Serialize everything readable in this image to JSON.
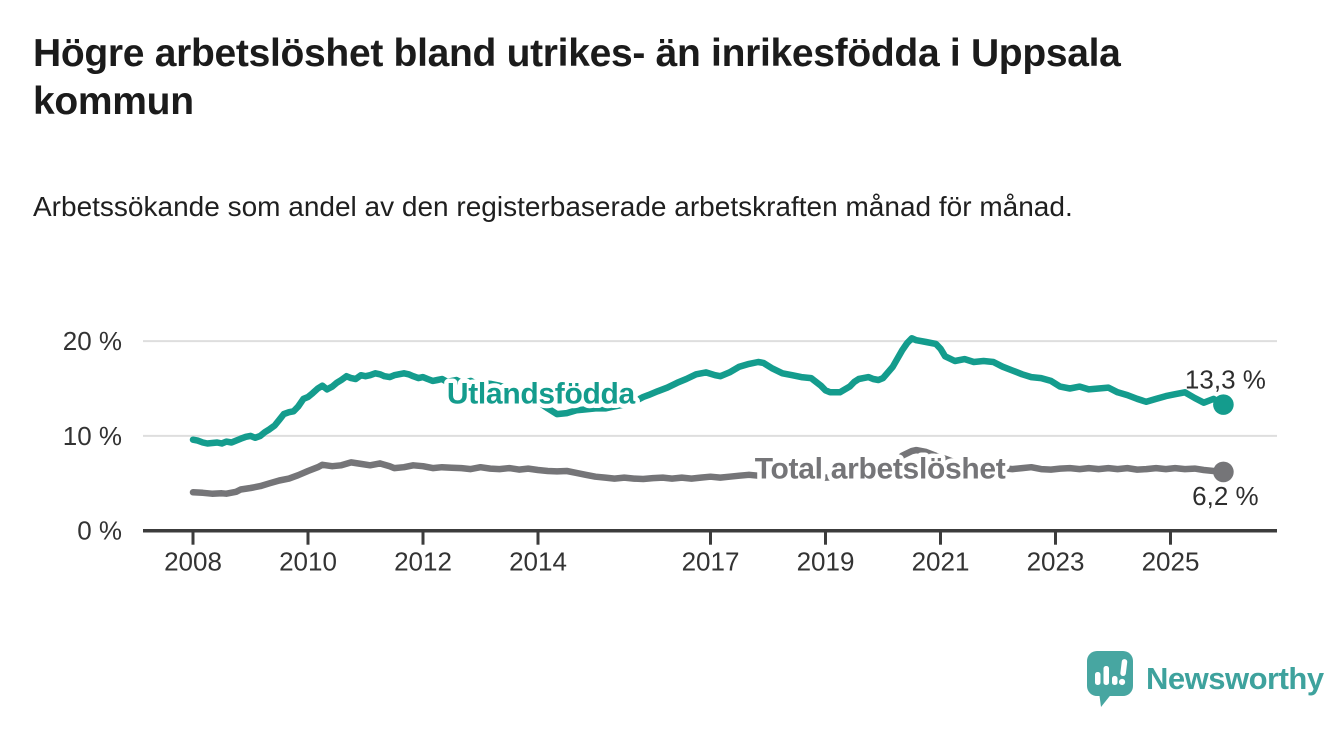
{
  "header": {
    "title": "Högre arbetslöshet bland utrikes- än inrikesfödda i Uppsala kommun",
    "subtitle": "Arbetssökande som andel av den registerbaserade arbetskraften månad för månad."
  },
  "chart_data": {
    "type": "line",
    "title": "Högre arbetslöshet bland utrikes- än inrikesfödda i Uppsala kommun",
    "xlabel": "",
    "ylabel": "%",
    "grid": "horizontal-only",
    "legend_position": "inline-labels-on-lines",
    "xlim": [
      2007.13,
      2026.85
    ],
    "ylim": [
      0,
      21.5
    ],
    "x_ticks": [
      {
        "value": 2008,
        "label": "2008"
      },
      {
        "value": 2010,
        "label": "2010"
      },
      {
        "value": 2012,
        "label": "2012"
      },
      {
        "value": 2014,
        "label": "2014"
      },
      {
        "value": 2017,
        "label": "2017"
      },
      {
        "value": 2019,
        "label": "2019"
      },
      {
        "value": 2021,
        "label": "2021"
      },
      {
        "value": 2023,
        "label": "2023"
      },
      {
        "value": 2025,
        "label": "2025"
      }
    ],
    "y_ticks": [
      {
        "value": 0,
        "label": "0 %"
      },
      {
        "value": 10,
        "label": "10 %"
      },
      {
        "value": 20,
        "label": "20 %"
      }
    ],
    "colors": {
      "grid": "#dedede",
      "axis": "#3c3c3c",
      "tick_text": "#333333",
      "end_label_text": "#2e2e2e"
    },
    "series": [
      {
        "name": "Utlandsfödda",
        "color": "#149C8D",
        "end_value": 13.3,
        "end_label": "13,3 %",
        "end_label_side": "above",
        "label_at": {
          "year": 2014.05,
          "pct": 14.45
        },
        "points": [
          [
            2008.0,
            9.6
          ],
          [
            2008.08,
            9.5
          ],
          [
            2008.17,
            9.3
          ],
          [
            2008.25,
            9.2
          ],
          [
            2008.42,
            9.3
          ],
          [
            2008.5,
            9.2
          ],
          [
            2008.58,
            9.4
          ],
          [
            2008.67,
            9.3
          ],
          [
            2008.75,
            9.5
          ],
          [
            2008.83,
            9.7
          ],
          [
            2008.92,
            9.9
          ],
          [
            2009.0,
            10.0
          ],
          [
            2009.08,
            9.8
          ],
          [
            2009.17,
            10.0
          ],
          [
            2009.25,
            10.4
          ],
          [
            2009.33,
            10.7
          ],
          [
            2009.42,
            11.1
          ],
          [
            2009.5,
            11.7
          ],
          [
            2009.58,
            12.3
          ],
          [
            2009.67,
            12.5
          ],
          [
            2009.75,
            12.6
          ],
          [
            2009.83,
            13.1
          ],
          [
            2009.92,
            13.9
          ],
          [
            2010.0,
            14.1
          ],
          [
            2010.08,
            14.5
          ],
          [
            2010.17,
            15.0
          ],
          [
            2010.25,
            15.3
          ],
          [
            2010.33,
            14.9
          ],
          [
            2010.42,
            15.2
          ],
          [
            2010.5,
            15.6
          ],
          [
            2010.58,
            15.9
          ],
          [
            2010.67,
            16.3
          ],
          [
            2010.75,
            16.1
          ],
          [
            2010.83,
            16.0
          ],
          [
            2010.92,
            16.4
          ],
          [
            2011.0,
            16.3
          ],
          [
            2011.08,
            16.4
          ],
          [
            2011.17,
            16.6
          ],
          [
            2011.25,
            16.5
          ],
          [
            2011.33,
            16.3
          ],
          [
            2011.42,
            16.2
          ],
          [
            2011.5,
            16.4
          ],
          [
            2011.58,
            16.5
          ],
          [
            2011.67,
            16.6
          ],
          [
            2011.75,
            16.5
          ],
          [
            2011.83,
            16.3
          ],
          [
            2011.92,
            16.1
          ],
          [
            2012.0,
            16.2
          ],
          [
            2012.08,
            16.0
          ],
          [
            2012.17,
            15.8
          ],
          [
            2012.25,
            15.9
          ],
          [
            2012.33,
            16.0
          ],
          [
            2012.42,
            15.7
          ],
          [
            2012.5,
            15.8
          ],
          [
            2012.58,
            15.9
          ],
          [
            2012.67,
            15.6
          ],
          [
            2012.75,
            15.7
          ],
          [
            2012.83,
            15.8
          ],
          [
            2012.92,
            15.5
          ],
          [
            2013.0,
            15.6
          ],
          [
            2013.17,
            15.5
          ],
          [
            2013.33,
            15.3
          ],
          [
            2013.5,
            15.0
          ],
          [
            2013.67,
            14.6
          ],
          [
            2013.83,
            14.1
          ],
          [
            2014.0,
            13.6
          ],
          [
            2014.17,
            12.9
          ],
          [
            2014.33,
            12.3
          ],
          [
            2014.5,
            12.4
          ],
          [
            2014.67,
            12.7
          ],
          [
            2014.83,
            12.8
          ],
          [
            2015.0,
            12.9
          ],
          [
            2015.17,
            12.9
          ],
          [
            2015.33,
            13.1
          ],
          [
            2015.5,
            13.3
          ],
          [
            2015.67,
            13.6
          ],
          [
            2015.83,
            14.1
          ],
          [
            2015.92,
            14.3
          ],
          [
            2016.08,
            14.7
          ],
          [
            2016.25,
            15.1
          ],
          [
            2016.42,
            15.6
          ],
          [
            2016.58,
            16.0
          ],
          [
            2016.75,
            16.5
          ],
          [
            2016.92,
            16.7
          ],
          [
            2017.08,
            16.4
          ],
          [
            2017.17,
            16.3
          ],
          [
            2017.33,
            16.7
          ],
          [
            2017.5,
            17.3
          ],
          [
            2017.67,
            17.6
          ],
          [
            2017.83,
            17.8
          ],
          [
            2017.92,
            17.7
          ],
          [
            2018.08,
            17.1
          ],
          [
            2018.25,
            16.6
          ],
          [
            2018.42,
            16.4
          ],
          [
            2018.58,
            16.2
          ],
          [
            2018.75,
            16.1
          ],
          [
            2018.92,
            15.3
          ],
          [
            2019.0,
            14.8
          ],
          [
            2019.08,
            14.6
          ],
          [
            2019.25,
            14.6
          ],
          [
            2019.42,
            15.2
          ],
          [
            2019.5,
            15.7
          ],
          [
            2019.58,
            16.0
          ],
          [
            2019.75,
            16.2
          ],
          [
            2019.83,
            16.0
          ],
          [
            2019.92,
            15.9
          ],
          [
            2020.0,
            16.1
          ],
          [
            2020.17,
            17.3
          ],
          [
            2020.33,
            19.0
          ],
          [
            2020.42,
            19.8
          ],
          [
            2020.5,
            20.3
          ],
          [
            2020.58,
            20.1
          ],
          [
            2020.75,
            19.9
          ],
          [
            2020.92,
            19.7
          ],
          [
            2021.0,
            19.2
          ],
          [
            2021.08,
            18.4
          ],
          [
            2021.25,
            17.9
          ],
          [
            2021.42,
            18.1
          ],
          [
            2021.58,
            17.8
          ],
          [
            2021.75,
            17.9
          ],
          [
            2021.92,
            17.8
          ],
          [
            2022.08,
            17.3
          ],
          [
            2022.25,
            16.9
          ],
          [
            2022.42,
            16.5
          ],
          [
            2022.58,
            16.2
          ],
          [
            2022.75,
            16.1
          ],
          [
            2022.92,
            15.8
          ],
          [
            2023.08,
            15.2
          ],
          [
            2023.25,
            15.0
          ],
          [
            2023.42,
            15.2
          ],
          [
            2023.58,
            14.9
          ],
          [
            2023.75,
            15.0
          ],
          [
            2023.92,
            15.1
          ],
          [
            2024.08,
            14.6
          ],
          [
            2024.25,
            14.3
          ],
          [
            2024.42,
            13.9
          ],
          [
            2024.58,
            13.6
          ],
          [
            2024.75,
            13.9
          ],
          [
            2024.92,
            14.2
          ],
          [
            2025.08,
            14.4
          ],
          [
            2025.25,
            14.6
          ],
          [
            2025.42,
            14.0
          ],
          [
            2025.58,
            13.5
          ],
          [
            2025.75,
            13.9
          ],
          [
            2025.92,
            13.3
          ]
        ]
      },
      {
        "name": "Total arbetslöshet",
        "color": "#757578",
        "end_value": 6.2,
        "end_label": "6,2 %",
        "end_label_side": "below",
        "label_at": {
          "year": 2019.95,
          "pct": 6.55
        },
        "points": [
          [
            2008.0,
            4.05
          ],
          [
            2008.17,
            4.0
          ],
          [
            2008.33,
            3.9
          ],
          [
            2008.5,
            3.95
          ],
          [
            2008.58,
            3.9
          ],
          [
            2008.75,
            4.1
          ],
          [
            2008.83,
            4.35
          ],
          [
            2009.0,
            4.5
          ],
          [
            2009.17,
            4.7
          ],
          [
            2009.33,
            5.0
          ],
          [
            2009.5,
            5.3
          ],
          [
            2009.67,
            5.5
          ],
          [
            2009.83,
            5.85
          ],
          [
            2010.0,
            6.3
          ],
          [
            2010.17,
            6.7
          ],
          [
            2010.25,
            6.95
          ],
          [
            2010.42,
            6.8
          ],
          [
            2010.58,
            6.9
          ],
          [
            2010.75,
            7.2
          ],
          [
            2010.92,
            7.05
          ],
          [
            2011.08,
            6.9
          ],
          [
            2011.25,
            7.1
          ],
          [
            2011.42,
            6.8
          ],
          [
            2011.5,
            6.6
          ],
          [
            2011.67,
            6.7
          ],
          [
            2011.83,
            6.9
          ],
          [
            2012.0,
            6.8
          ],
          [
            2012.17,
            6.6
          ],
          [
            2012.33,
            6.7
          ],
          [
            2012.5,
            6.65
          ],
          [
            2012.67,
            6.6
          ],
          [
            2012.83,
            6.5
          ],
          [
            2013.0,
            6.7
          ],
          [
            2013.17,
            6.55
          ],
          [
            2013.33,
            6.5
          ],
          [
            2013.5,
            6.6
          ],
          [
            2013.67,
            6.45
          ],
          [
            2013.83,
            6.55
          ],
          [
            2014.0,
            6.4
          ],
          [
            2014.17,
            6.3
          ],
          [
            2014.33,
            6.25
          ],
          [
            2014.5,
            6.3
          ],
          [
            2014.67,
            6.1
          ],
          [
            2014.83,
            5.9
          ],
          [
            2015.0,
            5.7
          ],
          [
            2015.17,
            5.6
          ],
          [
            2015.33,
            5.5
          ],
          [
            2015.5,
            5.6
          ],
          [
            2015.67,
            5.5
          ],
          [
            2015.83,
            5.45
          ],
          [
            2016.0,
            5.55
          ],
          [
            2016.17,
            5.6
          ],
          [
            2016.33,
            5.5
          ],
          [
            2016.5,
            5.6
          ],
          [
            2016.67,
            5.5
          ],
          [
            2016.83,
            5.6
          ],
          [
            2017.0,
            5.7
          ],
          [
            2017.17,
            5.6
          ],
          [
            2017.33,
            5.7
          ],
          [
            2017.5,
            5.8
          ],
          [
            2017.67,
            5.9
          ],
          [
            2017.83,
            5.8
          ],
          [
            2018.0,
            5.9
          ],
          [
            2018.25,
            5.8
          ],
          [
            2018.5,
            5.7
          ],
          [
            2018.75,
            5.8
          ],
          [
            2019.0,
            5.6
          ],
          [
            2019.25,
            5.7
          ],
          [
            2019.5,
            5.8
          ],
          [
            2019.75,
            5.9
          ],
          [
            2020.0,
            6.1
          ],
          [
            2020.17,
            6.8
          ],
          [
            2020.33,
            7.9
          ],
          [
            2020.5,
            8.4
          ],
          [
            2020.58,
            8.5
          ],
          [
            2020.75,
            8.3
          ],
          [
            2020.92,
            7.9
          ],
          [
            2021.08,
            7.6
          ],
          [
            2021.25,
            7.2
          ],
          [
            2021.42,
            7.0
          ],
          [
            2021.58,
            6.9
          ],
          [
            2021.75,
            6.8
          ],
          [
            2021.92,
            6.7
          ],
          [
            2022.08,
            6.6
          ],
          [
            2022.25,
            6.5
          ],
          [
            2022.42,
            6.6
          ],
          [
            2022.58,
            6.7
          ],
          [
            2022.75,
            6.5
          ],
          [
            2022.92,
            6.45
          ],
          [
            2023.08,
            6.55
          ],
          [
            2023.25,
            6.6
          ],
          [
            2023.42,
            6.5
          ],
          [
            2023.58,
            6.6
          ],
          [
            2023.75,
            6.5
          ],
          [
            2023.92,
            6.6
          ],
          [
            2024.08,
            6.5
          ],
          [
            2024.25,
            6.6
          ],
          [
            2024.42,
            6.45
          ],
          [
            2024.58,
            6.5
          ],
          [
            2024.75,
            6.6
          ],
          [
            2024.92,
            6.5
          ],
          [
            2025.08,
            6.6
          ],
          [
            2025.25,
            6.5
          ],
          [
            2025.42,
            6.55
          ],
          [
            2025.58,
            6.4
          ],
          [
            2025.75,
            6.3
          ],
          [
            2025.92,
            6.2
          ]
        ]
      }
    ]
  },
  "branding": {
    "logo_text": "Newsworthy",
    "logo_color": "#47A6A1",
    "logo_icon": "bar-chart-speech-bubble-icon"
  }
}
